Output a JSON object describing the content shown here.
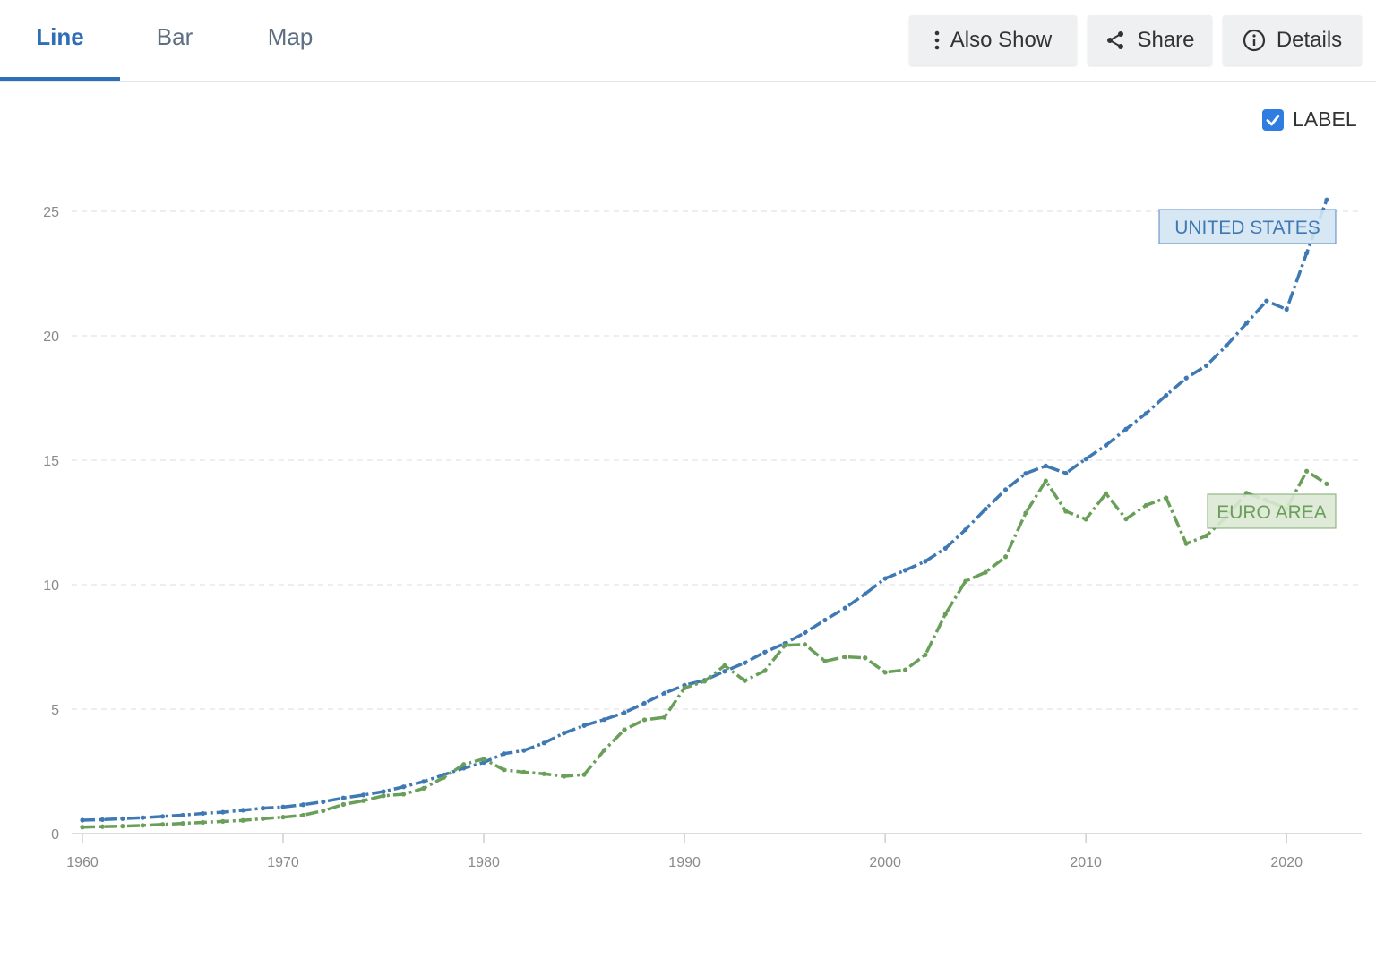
{
  "tabs": [
    {
      "id": "line",
      "label": "Line",
      "active": true
    },
    {
      "id": "bar",
      "label": "Bar",
      "active": false
    },
    {
      "id": "map",
      "label": "Map",
      "active": false
    }
  ],
  "toolbar": {
    "also_show_label": "Also Show",
    "share_label": "Share",
    "details_label": "Details"
  },
  "label_toggle": {
    "label": "LABEL",
    "checked": true
  },
  "icons": {
    "also_show": "vertical-dots-icon",
    "share": "share-icon",
    "details": "info-icon",
    "checkbox": "checkmark-icon"
  },
  "chart_data": {
    "type": "line",
    "title": "",
    "xlabel": "",
    "ylabel": "",
    "xlim": [
      1960,
      2022
    ],
    "ylim": [
      0,
      27
    ],
    "x_ticks": [
      1960,
      1970,
      1980,
      1990,
      2000,
      2010,
      2020
    ],
    "y_ticks": [
      0,
      5,
      10,
      15,
      20,
      25
    ],
    "grid": true,
    "x": [
      1960,
      1961,
      1962,
      1963,
      1964,
      1965,
      1966,
      1967,
      1968,
      1969,
      1970,
      1971,
      1972,
      1973,
      1974,
      1975,
      1976,
      1977,
      1978,
      1979,
      1980,
      1981,
      1982,
      1983,
      1984,
      1985,
      1986,
      1987,
      1988,
      1989,
      1990,
      1991,
      1992,
      1993,
      1994,
      1995,
      1996,
      1997,
      1998,
      1999,
      2000,
      2001,
      2002,
      2003,
      2004,
      2005,
      2006,
      2007,
      2008,
      2009,
      2010,
      2011,
      2012,
      2013,
      2014,
      2015,
      2016,
      2017,
      2018,
      2019,
      2020,
      2021,
      2022
    ],
    "series": [
      {
        "name": "UNITED STATES",
        "color": "#3e79b4",
        "label_fill": "#d3e4f2",
        "values": [
          0.54,
          0.56,
          0.6,
          0.64,
          0.69,
          0.74,
          0.81,
          0.86,
          0.94,
          1.02,
          1.07,
          1.16,
          1.28,
          1.43,
          1.55,
          1.69,
          1.88,
          2.09,
          2.36,
          2.63,
          2.86,
          3.21,
          3.34,
          3.64,
          4.04,
          4.34,
          4.58,
          4.86,
          5.24,
          5.64,
          5.96,
          6.16,
          6.52,
          6.86,
          7.29,
          7.64,
          8.07,
          8.58,
          9.06,
          9.63,
          10.25,
          10.58,
          10.94,
          11.46,
          12.21,
          13.04,
          13.82,
          14.47,
          14.77,
          14.48,
          15.05,
          15.6,
          16.25,
          16.88,
          17.61,
          18.3,
          18.8,
          19.6,
          20.5,
          21.4,
          21.06,
          23.32,
          25.46
        ]
      },
      {
        "name": "EURO AREA",
        "color": "#6a9f5a",
        "label_fill": "#dbe8d5",
        "values": [
          0.26,
          0.28,
          0.3,
          0.33,
          0.37,
          0.41,
          0.45,
          0.49,
          0.53,
          0.6,
          0.66,
          0.74,
          0.92,
          1.17,
          1.32,
          1.52,
          1.58,
          1.82,
          2.25,
          2.78,
          3.0,
          2.56,
          2.47,
          2.4,
          2.3,
          2.37,
          3.35,
          4.17,
          4.57,
          4.67,
          5.85,
          6.12,
          6.75,
          6.14,
          6.54,
          7.56,
          7.6,
          6.93,
          7.1,
          7.06,
          6.48,
          6.58,
          7.18,
          8.82,
          10.14,
          10.5,
          11.12,
          12.88,
          14.17,
          12.95,
          12.63,
          13.66,
          12.64,
          13.19,
          13.49,
          11.65,
          11.96,
          12.72,
          13.68,
          13.4,
          13.05,
          14.56,
          14.05
        ]
      }
    ]
  }
}
